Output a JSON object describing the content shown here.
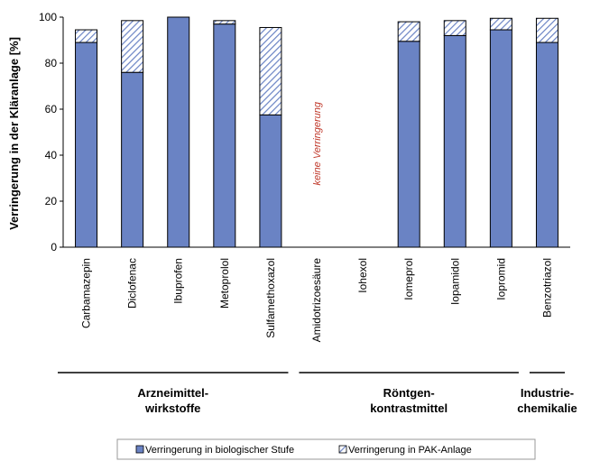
{
  "chart_data": {
    "type": "bar",
    "stacked": true,
    "ylabel": "Verringerung in der Kläranlage [%]",
    "ylim": [
      0,
      100
    ],
    "yticks": [
      0,
      20,
      40,
      60,
      80,
      100
    ],
    "grid": false,
    "legend_position": "bottom",
    "colors": {
      "bio": "#6a83c4",
      "pak_hatch": "#6a83c4",
      "pak_bg": "#ffffff"
    },
    "categories": [
      "Carbamazepin",
      "Diclofenac",
      "Ibuprofen",
      "Metoprolol",
      "Sulfamethoxazol",
      "Amidotrizoesäure",
      "Iohexol",
      "Iomeprol",
      "Iopamidol",
      "Iopromid",
      "Benzotriazol"
    ],
    "series": [
      {
        "name": "Verringerung in biologischer Stufe",
        "values": [
          89,
          76,
          100,
          97,
          57.5,
          0,
          0,
          89.5,
          92,
          94.5,
          89
        ]
      },
      {
        "name": "Verringerung in PAK-Anlage",
        "values": [
          5.5,
          22.5,
          0,
          1.5,
          38,
          0,
          0,
          8.5,
          6.5,
          5,
          10.5
        ]
      }
    ],
    "groups": [
      {
        "label_line1": "Arzneimittel-",
        "label_line2": "wirkstoffe",
        "from": 0,
        "to": 4
      },
      {
        "label_line1": "Röntgen-",
        "label_line2": "kontrastmittel",
        "from": 5,
        "to": 9
      },
      {
        "label_line1": "Industrie-",
        "label_line2": "chemikalie",
        "from": 10,
        "to": 10
      }
    ],
    "annotations": [
      {
        "text": "keine Verringerung",
        "category": "Amidotrizoesäure"
      }
    ]
  }
}
